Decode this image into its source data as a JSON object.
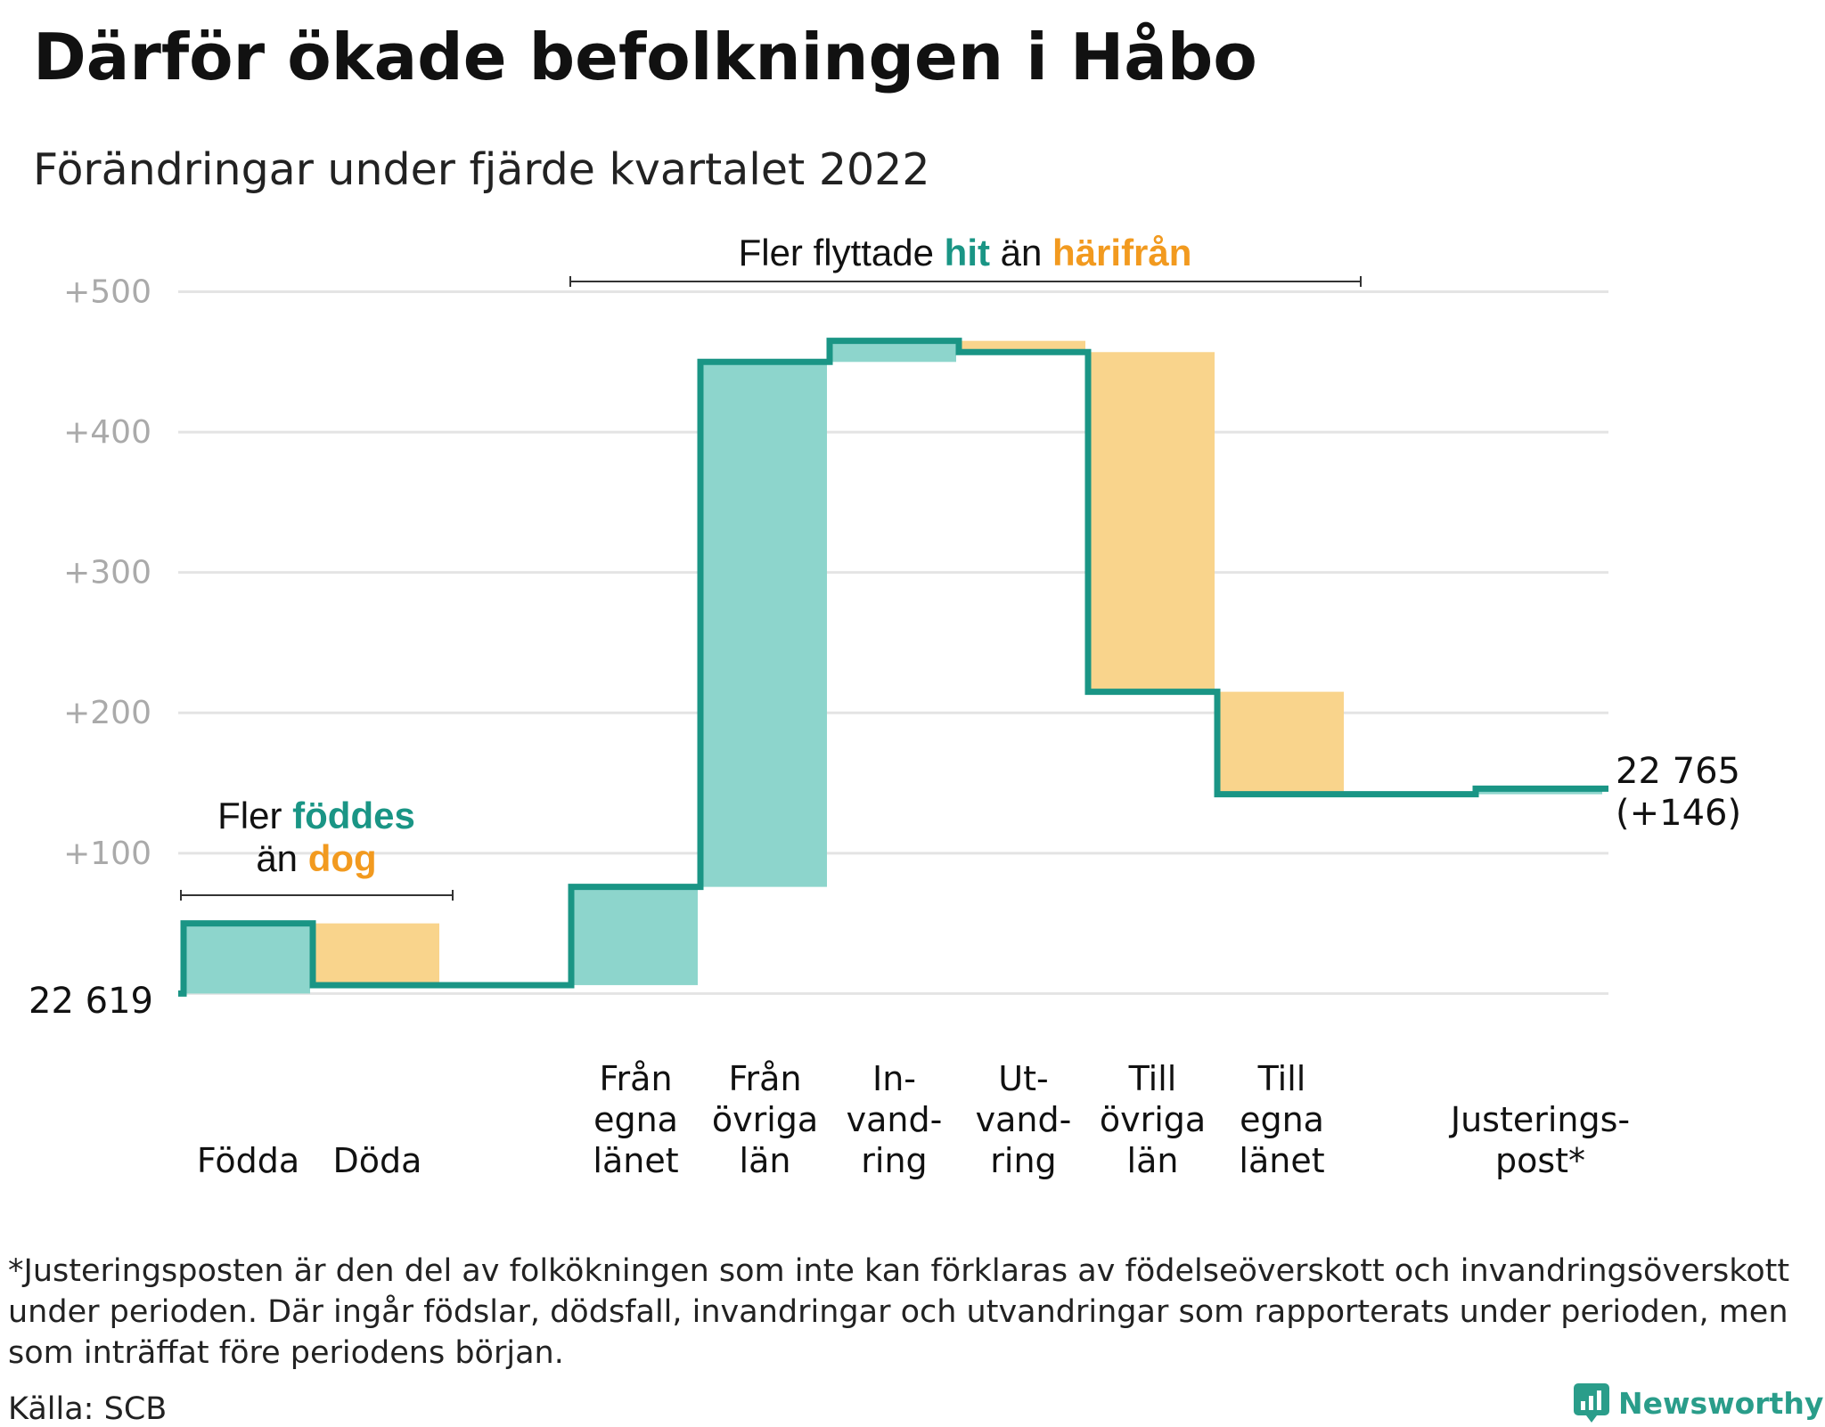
{
  "title": "Därför ökade befolkningen i Håbo",
  "subtitle": "Förändringar under fjärde kvartalet 2022",
  "footnote": "*Justeringsposten är den del av folkökningen som inte kan förklaras av födelseöverskott och invandringsöverskott under perioden. Där ingår födslar, dödsfall, invandringar och utvandringar som rapporterats under perioden, men som inträffat före periodens början.",
  "source": "Källa: SCB",
  "brand": "Newsworthy",
  "colors": {
    "increase": "#8dd5cc",
    "decrease": "#f9d48c",
    "line": "#1a9585",
    "accent_teal": "#1a9585",
    "accent_orange": "#f29a1f",
    "grid": "#e4e4e4",
    "tick": "#aaaaaa"
  },
  "chart_data": {
    "type": "waterfall",
    "start_value": 22619,
    "start_label": "22 619",
    "end_label": "22 765",
    "end_change_label": "(+146)",
    "ylim": [
      -8,
      520
    ],
    "yticks": [
      {
        "value": 100,
        "label": "+100"
      },
      {
        "value": 200,
        "label": "+200"
      },
      {
        "value": 300,
        "label": "+300"
      },
      {
        "value": 400,
        "label": "+400"
      },
      {
        "value": 500,
        "label": "+500"
      }
    ],
    "grid": true,
    "steps": [
      {
        "category": [
          "Födda"
        ],
        "change": 50
      },
      {
        "category": [
          "Döda"
        ],
        "change": -44
      },
      {
        "category": [],
        "change": 0
      },
      {
        "category": [
          "Från",
          "egna",
          "länet"
        ],
        "change": 70
      },
      {
        "category": [
          "Från",
          "övriga",
          "län"
        ],
        "change": 374
      },
      {
        "category": [
          "In-",
          "vand-",
          "ring"
        ],
        "change": 15
      },
      {
        "category": [
          "Ut-",
          "vand-",
          "ring"
        ],
        "change": -8
      },
      {
        "category": [
          "Till",
          "övriga",
          "län"
        ],
        "change": -242
      },
      {
        "category": [
          "Till",
          "egna",
          "länet"
        ],
        "change": -73
      },
      {
        "category": [],
        "change": 0
      },
      {
        "category": [
          "Justerings-",
          "post*"
        ],
        "change": 4
      }
    ],
    "annotations": [
      {
        "parts": [
          [
            "Fler ",
            "plain"
          ],
          [
            "föddes",
            "teal"
          ]
        ],
        "line2": [
          [
            "än ",
            "plain"
          ],
          [
            "dog",
            "orange"
          ]
        ]
      },
      {
        "parts": [
          [
            "Fler flyttade ",
            "plain"
          ],
          [
            "hit",
            "teal"
          ],
          [
            " än ",
            "plain"
          ],
          [
            "härifrån",
            "orange"
          ]
        ]
      }
    ]
  }
}
